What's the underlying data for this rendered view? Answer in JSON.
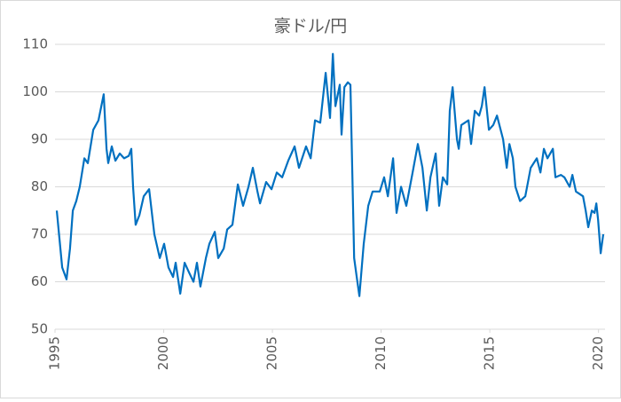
{
  "chart_data": {
    "type": "line",
    "title": "豪ドル/円",
    "x": [
      1995.08,
      1995.33,
      1995.53,
      1995.69,
      1995.82,
      1995.98,
      1996.14,
      1996.35,
      1996.51,
      1996.76,
      1997.0,
      1997.24,
      1997.37,
      1997.45,
      1997.61,
      1997.78,
      1997.98,
      1998.18,
      1998.39,
      1998.51,
      1998.59,
      1998.71,
      1998.88,
      1999.08,
      1999.33,
      1999.57,
      1999.82,
      2000.02,
      2000.22,
      2000.43,
      2000.55,
      2000.76,
      2000.96,
      2001.16,
      2001.37,
      2001.53,
      2001.69,
      2001.94,
      2002.1,
      2002.35,
      2002.51,
      2002.76,
      2002.92,
      2003.16,
      2003.41,
      2003.65,
      2003.9,
      2004.1,
      2004.31,
      2004.43,
      2004.71,
      2004.96,
      2005.2,
      2005.45,
      2005.73,
      2006.02,
      2006.22,
      2006.55,
      2006.76,
      2006.96,
      2007.2,
      2007.45,
      2007.65,
      2007.78,
      2007.9,
      2008.1,
      2008.18,
      2008.31,
      2008.47,
      2008.59,
      2008.76,
      2008.88,
      2009.0,
      2009.2,
      2009.41,
      2009.61,
      2009.94,
      2010.14,
      2010.31,
      2010.55,
      2010.71,
      2010.92,
      2011.16,
      2011.45,
      2011.69,
      2011.9,
      2012.1,
      2012.27,
      2012.51,
      2012.67,
      2012.84,
      2013.04,
      2013.16,
      2013.29,
      2013.49,
      2013.57,
      2013.69,
      2014.02,
      2014.14,
      2014.31,
      2014.51,
      2014.63,
      2014.76,
      2014.96,
      2015.16,
      2015.33,
      2015.61,
      2015.78,
      2015.9,
      2016.06,
      2016.18,
      2016.39,
      2016.63,
      2016.88,
      2017.16,
      2017.33,
      2017.49,
      2017.65,
      2017.9,
      2018.02,
      2018.27,
      2018.43,
      2018.67,
      2018.8,
      2018.96,
      2019.29,
      2019.41,
      2019.53,
      2019.69,
      2019.82,
      2019.9,
      2019.98,
      2020.1,
      2020.22
    ],
    "values": [
      75,
      63,
      60.5,
      67,
      75,
      77,
      80,
      86,
      85,
      92,
      94,
      99.5,
      88,
      85,
      88.5,
      85.5,
      87,
      86,
      86.5,
      88,
      80,
      72,
      74,
      78,
      79.5,
      70,
      65,
      68,
      63,
      61,
      64,
      57.5,
      64,
      62,
      60,
      64,
      59,
      65,
      68,
      70.5,
      65,
      67,
      71,
      72,
      80.5,
      76,
      80,
      84,
      79,
      76.5,
      81,
      79.5,
      83,
      82,
      85.5,
      88.5,
      84,
      88.5,
      86,
      94,
      93.5,
      104,
      94.5,
      108,
      97,
      101.5,
      91,
      101,
      102,
      101.5,
      65,
      61,
      57,
      68,
      76,
      79,
      79,
      82,
      78,
      86,
      74.5,
      80,
      76,
      83,
      89,
      84,
      75,
      82,
      87,
      76,
      82,
      80.5,
      96,
      101,
      90,
      88,
      93,
      94,
      89,
      96,
      95,
      97,
      101,
      92,
      93,
      95,
      90,
      84,
      89,
      86,
      80,
      77,
      78,
      84,
      86,
      83,
      88,
      86,
      88,
      82,
      82.5,
      82,
      80,
      82.5,
      79,
      78,
      75,
      71.5,
      75,
      74.5,
      76.5,
      73,
      66,
      70
    ],
    "color": "#0070c0",
    "xlim": [
      1995,
      2020.3
    ],
    "xticks": [
      1995,
      2000,
      2005,
      2010,
      2015,
      2020
    ],
    "ylim": [
      50,
      110
    ],
    "yticks": [
      50,
      60,
      70,
      80,
      90,
      100,
      110
    ],
    "grid": true
  }
}
